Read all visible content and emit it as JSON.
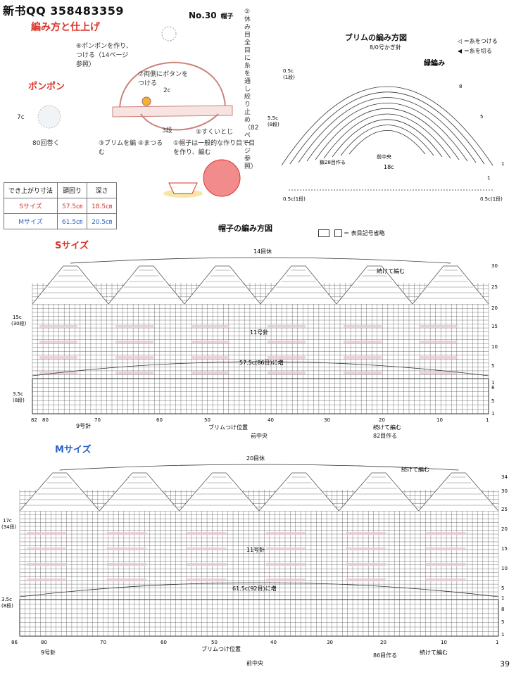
{
  "header": {
    "qq": "新书QQ 358483359",
    "number": "No.30",
    "item": "帽子"
  },
  "left_notes": {
    "title": "編み方と仕上げ",
    "step2": "②休み目全目に糸を通し絞り止め（82ページ参照）",
    "step6": "⑥ポンポンを作り、つける（14ページ参照）",
    "step7": "⑦両側にボタンをつける",
    "size2c": "2c",
    "step3": "③ブリムを編む",
    "step4": "④まつる",
    "rows3": "3段",
    "step5": "⑤すくいとじ",
    "step1": "①帽子は一般的な作り目で目を作り、編む",
    "pompom": "ポンポン",
    "pompom_size": "7c",
    "pompom_wind": "80回巻く"
  },
  "size_table": {
    "headers": [
      "でき上がり寸法",
      "頭回り",
      "深さ"
    ],
    "rows": [
      [
        "Sサイズ",
        "57.5㎝",
        "18.5㎝"
      ],
      [
        "Mサイズ",
        "61.5㎝",
        "20.5㎝"
      ]
    ]
  },
  "brim": {
    "title": "ブリムの編み方図",
    "hook": "8/0号かぎ針",
    "legend1": "◁ ＝糸をつける",
    "legend2": "◀ ＝糸を切る",
    "stitch": "緑編み",
    "top": "0.5c",
    "top_rows": "(1段)",
    "height": "5.5c",
    "height_rows": "(8段)",
    "center": "前中央",
    "chain": "鎖28目作る",
    "width": "18c",
    "side_l": "0.5c(1段)",
    "side_r": "0.5c(1段)",
    "row8": "8",
    "row5": "5",
    "row1": "1",
    "row1b": "1"
  },
  "chart": {
    "title": "帽子の編み方図",
    "legend": "＝ 表目記号省略",
    "s": {
      "label": "Sサイズ",
      "top": "14目休",
      "needle_top": "11号針",
      "inc": "57.5c(86目)に増",
      "depth": "15c",
      "depth_rows": "(30段)",
      "rib": "3.5c",
      "rib_rows": "(8段)",
      "needle_bottom": "9号針",
      "brim_pos": "ブリムつけ位置",
      "center": "前中央",
      "cast": "82目作る",
      "cont": "続けて編む",
      "cont_top": "続けて編む",
      "bottom_nums": [
        "82",
        "80",
        "70",
        "60",
        "50",
        "40",
        "30",
        "20",
        "10",
        "1"
      ],
      "side_nums": [
        "30",
        "25",
        "20",
        "15",
        "10",
        "5",
        "1",
        "8",
        "5",
        "1"
      ]
    },
    "m": {
      "label": "Mサイズ",
      "top": "20目休",
      "needle_top": "11号針",
      "inc": "61.5c(92目)に増",
      "depth": "17c",
      "depth_rows": "(34段)",
      "rib": "3.5c",
      "rib_rows": "(8段)",
      "needle_bottom": "9号針",
      "brim_pos": "ブリムつけ位置",
      "center": "前中央",
      "cast": "86目作る",
      "cont": "続けて編む",
      "cont_top": "続けて編む",
      "bottom_nums": [
        "86",
        "80",
        "70",
        "60",
        "50",
        "40",
        "30",
        "20",
        "10",
        "1"
      ],
      "side_nums": [
        "34",
        "30",
        "25",
        "20",
        "15",
        "10",
        "5",
        "1",
        "8",
        "5",
        "1"
      ]
    }
  },
  "page_number": "39",
  "colors": {
    "red": "#d9342b",
    "blue": "#2b62c8",
    "grid": "#555555",
    "pink": "#e7c9d6"
  }
}
